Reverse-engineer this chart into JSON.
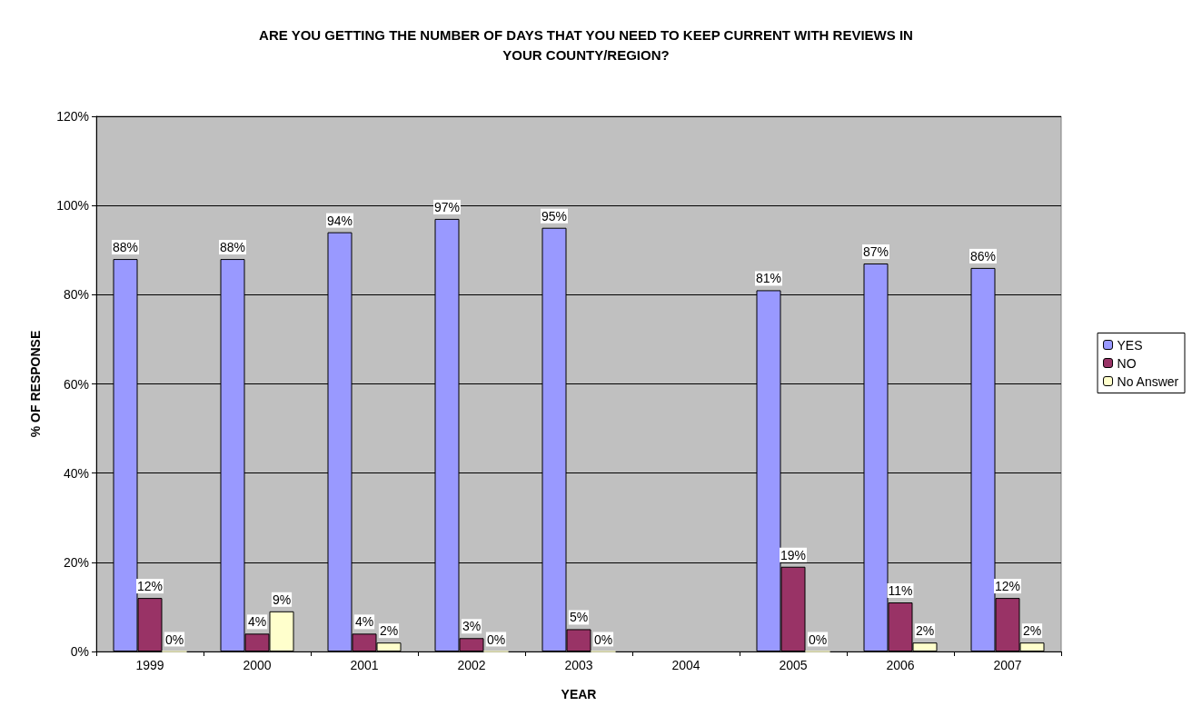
{
  "chart_data": {
    "type": "bar",
    "title": "ARE YOU GETTING THE NUMBER OF DAYS THAT YOU NEED TO KEEP CURRENT WITH REVIEWS IN\nYOUR COUNTY/REGION?",
    "xlabel": "YEAR",
    "ylabel": "% OF RESPONSE",
    "categories": [
      "1999",
      "2000",
      "2001",
      "2002",
      "2003",
      "2004",
      "2005",
      "2006",
      "2007"
    ],
    "series": [
      {
        "name": "YES",
        "color": "#9999ff",
        "values": [
          88,
          88,
          94,
          97,
          95,
          null,
          81,
          87,
          86
        ],
        "value_labels": [
          "88%",
          "88%",
          "94%",
          "97%",
          "95%",
          null,
          "81%",
          "87%",
          "86%"
        ]
      },
      {
        "name": "NO",
        "color": "#993366",
        "values": [
          12,
          4,
          4,
          3,
          5,
          null,
          19,
          11,
          12
        ],
        "value_labels": [
          "12%",
          "4%",
          "4%",
          "3%",
          "5%",
          null,
          "19%",
          "11%",
          "12%"
        ]
      },
      {
        "name": "No Answer",
        "color": "#ffffcc",
        "values": [
          0,
          9,
          2,
          0,
          0,
          null,
          0,
          2,
          2
        ],
        "value_labels": [
          "0%",
          "9%",
          "2%",
          "0%",
          "0%",
          null,
          "0%",
          "2%",
          "2%"
        ]
      }
    ],
    "ylim": [
      0,
      120
    ],
    "yticks": [
      {
        "value": 0,
        "label": "0%"
      },
      {
        "value": 20,
        "label": "20%"
      },
      {
        "value": 40,
        "label": "40%"
      },
      {
        "value": 60,
        "label": "60%"
      },
      {
        "value": 80,
        "label": "80%"
      },
      {
        "value": 100,
        "label": "100%"
      },
      {
        "value": 120,
        "label": "120%"
      }
    ],
    "grid": "y",
    "legend": "right"
  }
}
